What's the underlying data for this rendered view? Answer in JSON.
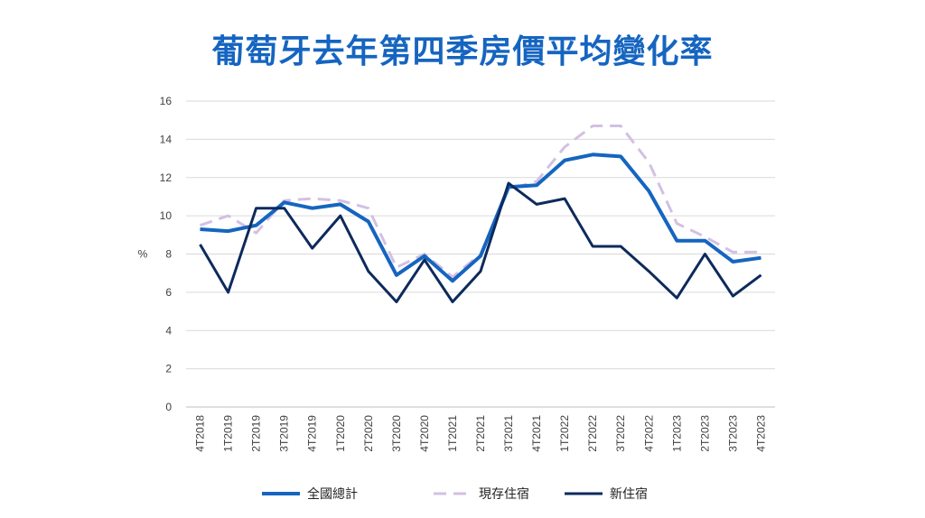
{
  "chart_data": {
    "type": "line",
    "title": "葡萄牙去年第四季房價平均變化率",
    "ylabel": "%",
    "xlabel": "",
    "ylim": [
      0,
      16
    ],
    "yticks": [
      0,
      2,
      4,
      6,
      8,
      10,
      12,
      14,
      16
    ],
    "grid": true,
    "legend_position": "bottom",
    "categories": [
      "4T2018",
      "1T2019",
      "2T2019",
      "3T2019",
      "4T2019",
      "1T2020",
      "2T2020",
      "3T2020",
      "4T2020",
      "1T2021",
      "2T2021",
      "3T2021",
      "4T2021",
      "1T2022",
      "2T2022",
      "3T2022",
      "4T2022",
      "1T2023",
      "2T2023",
      "3T2023",
      "4T2023"
    ],
    "series": [
      {
        "name": "全國總計",
        "color": "#1565c0",
        "style": "solid",
        "values": [
          9.3,
          9.2,
          9.5,
          10.7,
          10.4,
          10.6,
          9.7,
          6.9,
          7.9,
          6.6,
          7.9,
          11.5,
          11.6,
          12.9,
          13.2,
          13.1,
          11.3,
          8.7,
          8.7,
          7.6,
          7.8
        ]
      },
      {
        "name": "現存住宿",
        "color": "#d3c0e3",
        "style": "dashed",
        "values": [
          9.5,
          10.0,
          9.1,
          10.8,
          10.9,
          10.8,
          10.4,
          7.3,
          8.0,
          6.8,
          8.0,
          11.4,
          11.8,
          13.6,
          14.7,
          14.7,
          12.8,
          9.6,
          8.9,
          8.1,
          8.1
        ]
      },
      {
        "name": "新住宿",
        "color": "#0d2a5c",
        "style": "solid",
        "values": [
          8.5,
          6.0,
          10.4,
          10.4,
          8.3,
          10.0,
          7.1,
          5.5,
          7.7,
          5.5,
          7.1,
          11.7,
          10.6,
          10.9,
          8.4,
          8.4,
          7.1,
          5.7,
          8.0,
          5.8,
          6.9
        ]
      }
    ]
  }
}
